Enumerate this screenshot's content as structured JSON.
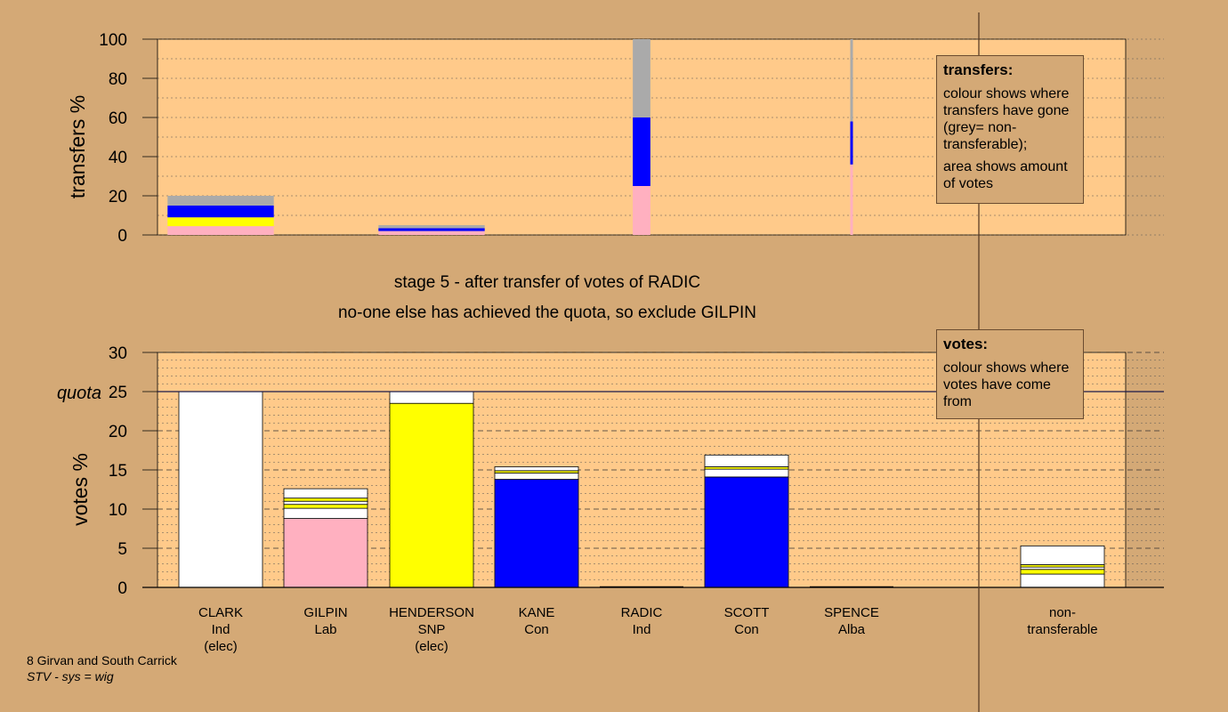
{
  "chart_data": {
    "type": "bar",
    "stage_title": "stage 5 - after transfer of votes of RADIC",
    "stage_subtitle": "no-one else has achieved the quota, so exclude GILPIN",
    "colors": {
      "background": "#d4a976",
      "plot_background": "#ffca8a",
      "white": "#ffffff",
      "pink": "#ffb0c0",
      "yellow": "#ffff00",
      "blue": "#0000ff",
      "grey": "#aaaaaa"
    },
    "candidates": [
      {
        "name": "CLARK",
        "party": "Ind",
        "status": "(elec)"
      },
      {
        "name": "GILPIN",
        "party": "Lab",
        "status": ""
      },
      {
        "name": "HENDERSON",
        "party": "SNP",
        "status": "(elec)"
      },
      {
        "name": "KANE",
        "party": "Con",
        "status": ""
      },
      {
        "name": "RADIC",
        "party": "Ind",
        "status": ""
      },
      {
        "name": "SCOTT",
        "party": "Con",
        "status": ""
      },
      {
        "name": "SPENCE",
        "party": "Alba",
        "status": ""
      }
    ],
    "nontransferable_label": [
      "non-",
      "transferable"
    ],
    "transfers_chart": {
      "ylabel": "transfers %",
      "ylim": [
        0,
        100
      ],
      "yticks": [
        0,
        20,
        40,
        60,
        80,
        100
      ],
      "bars": [
        {
          "candidate": "CLARK",
          "width_share": 1.0,
          "segments": [
            {
              "color": "pink",
              "value": 4.5
            },
            {
              "color": "yellow",
              "value": 4.5
            },
            {
              "color": "blue",
              "value": 6
            },
            {
              "color": "grey",
              "value": 5
            }
          ]
        },
        {
          "candidate": "HENDERSON",
          "width_share": 1.0,
          "segments": [
            {
              "color": "pink",
              "value": 2
            },
            {
              "color": "blue",
              "value": 1.5
            },
            {
              "color": "grey",
              "value": 1.5
            }
          ]
        },
        {
          "candidate": "RADIC",
          "width_share": 0.21,
          "segments": [
            {
              "color": "pink",
              "value": 25
            },
            {
              "color": "blue",
              "value": 35
            },
            {
              "color": "grey",
              "value": 40
            }
          ]
        },
        {
          "candidate": "SPENCE",
          "width_share": 0.03,
          "segments": [
            {
              "color": "pink",
              "value": 36
            },
            {
              "color": "blue",
              "value": 22
            },
            {
              "color": "grey",
              "value": 42
            }
          ]
        }
      ],
      "legend": {
        "title": "transfers:",
        "paragraphs": [
          "colour shows where transfers have gone (grey= non-transferable);",
          "area shows amount of votes"
        ]
      }
    },
    "votes_chart": {
      "ylabel": "votes %",
      "ylim": [
        0,
        30
      ],
      "yticks": [
        0,
        5,
        10,
        15,
        20,
        25,
        30
      ],
      "quota": 25,
      "quota_label": "quota",
      "bars": [
        {
          "candidate": "CLARK",
          "segments": [
            {
              "color": "white",
              "value": 25
            }
          ]
        },
        {
          "candidate": "GILPIN",
          "segments": [
            {
              "color": "pink",
              "value": 8.8
            },
            {
              "color": "white",
              "value": 1.3
            },
            {
              "color": "yellow",
              "value": 0.5
            },
            {
              "color": "white",
              "value": 0.4
            },
            {
              "color": "yellow",
              "value": 0.4
            },
            {
              "color": "white",
              "value": 1.2
            }
          ]
        },
        {
          "candidate": "HENDERSON",
          "segments": [
            {
              "color": "yellow",
              "value": 23.5
            },
            {
              "color": "white",
              "value": 1.5
            }
          ]
        },
        {
          "candidate": "KANE",
          "segments": [
            {
              "color": "blue",
              "value": 13.8
            },
            {
              "color": "white",
              "value": 0.8
            },
            {
              "color": "yellow",
              "value": 0.3
            },
            {
              "color": "white",
              "value": 0.5
            }
          ]
        },
        {
          "candidate": "RADIC",
          "segments": []
        },
        {
          "candidate": "SCOTT",
          "segments": [
            {
              "color": "blue",
              "value": 14.1
            },
            {
              "color": "white",
              "value": 1.0
            },
            {
              "color": "yellow",
              "value": 0.3
            },
            {
              "color": "white",
              "value": 1.5
            }
          ]
        },
        {
          "candidate": "SPENCE",
          "segments": []
        },
        {
          "candidate": "non-transferable",
          "segments": [
            {
              "color": "white",
              "value": 1.7
            },
            {
              "color": "yellow",
              "value": 0.6
            },
            {
              "color": "white",
              "value": 0.3
            },
            {
              "color": "yellow",
              "value": 0.3
            },
            {
              "color": "white",
              "value": 2.4
            }
          ]
        }
      ],
      "legend": {
        "title": "votes:",
        "paragraphs": [
          "colour shows where votes have come from"
        ]
      }
    }
  },
  "footer": {
    "ward": "8 Girvan and South Carrick",
    "system": "STV - sys = wig"
  }
}
